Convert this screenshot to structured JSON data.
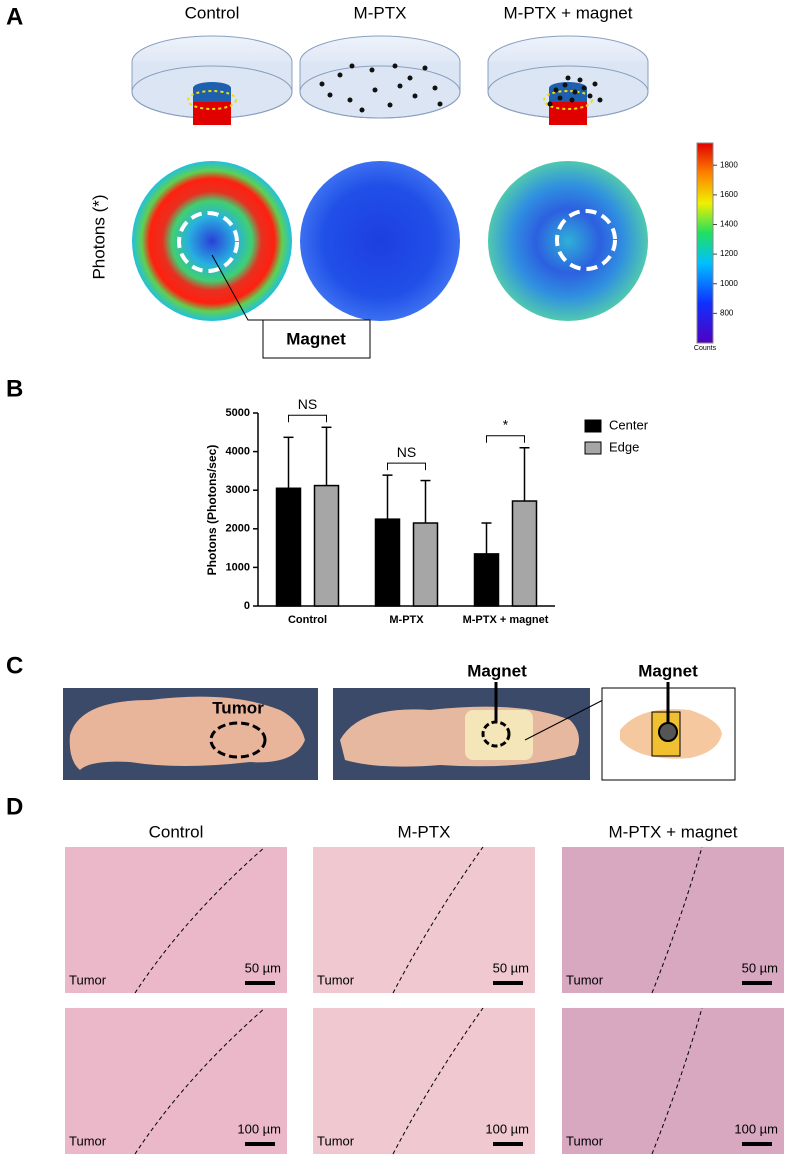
{
  "panel_a": {
    "label": "A",
    "columns": [
      "Control",
      "M-PTX",
      "M-PTX + magnet"
    ],
    "y_label": "Photons (*)",
    "callout": "Magnet",
    "colorbar": {
      "lim": [
        600,
        1950
      ],
      "ticks": [
        800,
        1000,
        1200,
        1400,
        1600,
        1800
      ],
      "label": "Counts"
    }
  },
  "chart_data": {
    "type": "bar",
    "label": "B",
    "ylabel": "Photons (Photons/sec)",
    "categories": [
      "Control",
      "M-PTX",
      "M-PTX + magnet"
    ],
    "series": [
      {
        "name": "Center",
        "color": "#000000",
        "values": [
          3050,
          2250,
          1350
        ],
        "errors": [
          1320,
          1140,
          800
        ]
      },
      {
        "name": "Edge",
        "color": "#a6a6a6",
        "values": [
          3120,
          2150,
          2720
        ],
        "errors": [
          1510,
          1100,
          1380
        ]
      }
    ],
    "annotations": [
      "NS",
      "NS",
      "*"
    ],
    "ylim": [
      0,
      5000
    ],
    "yticks": [
      0,
      1000,
      2000,
      3000,
      4000,
      5000
    ],
    "legend": "right"
  },
  "panel_c": {
    "label": "C",
    "tumor": "Tumor",
    "magnet_photo": "Magnet",
    "magnet_inset": "Magnet"
  },
  "panel_d": {
    "label": "D",
    "columns": [
      "Control",
      "M-PTX",
      "M-PTX + magnet"
    ],
    "tumor": "Tumor",
    "rows": [
      {
        "scale": "50 µm"
      },
      {
        "scale": "100 µm"
      }
    ]
  }
}
